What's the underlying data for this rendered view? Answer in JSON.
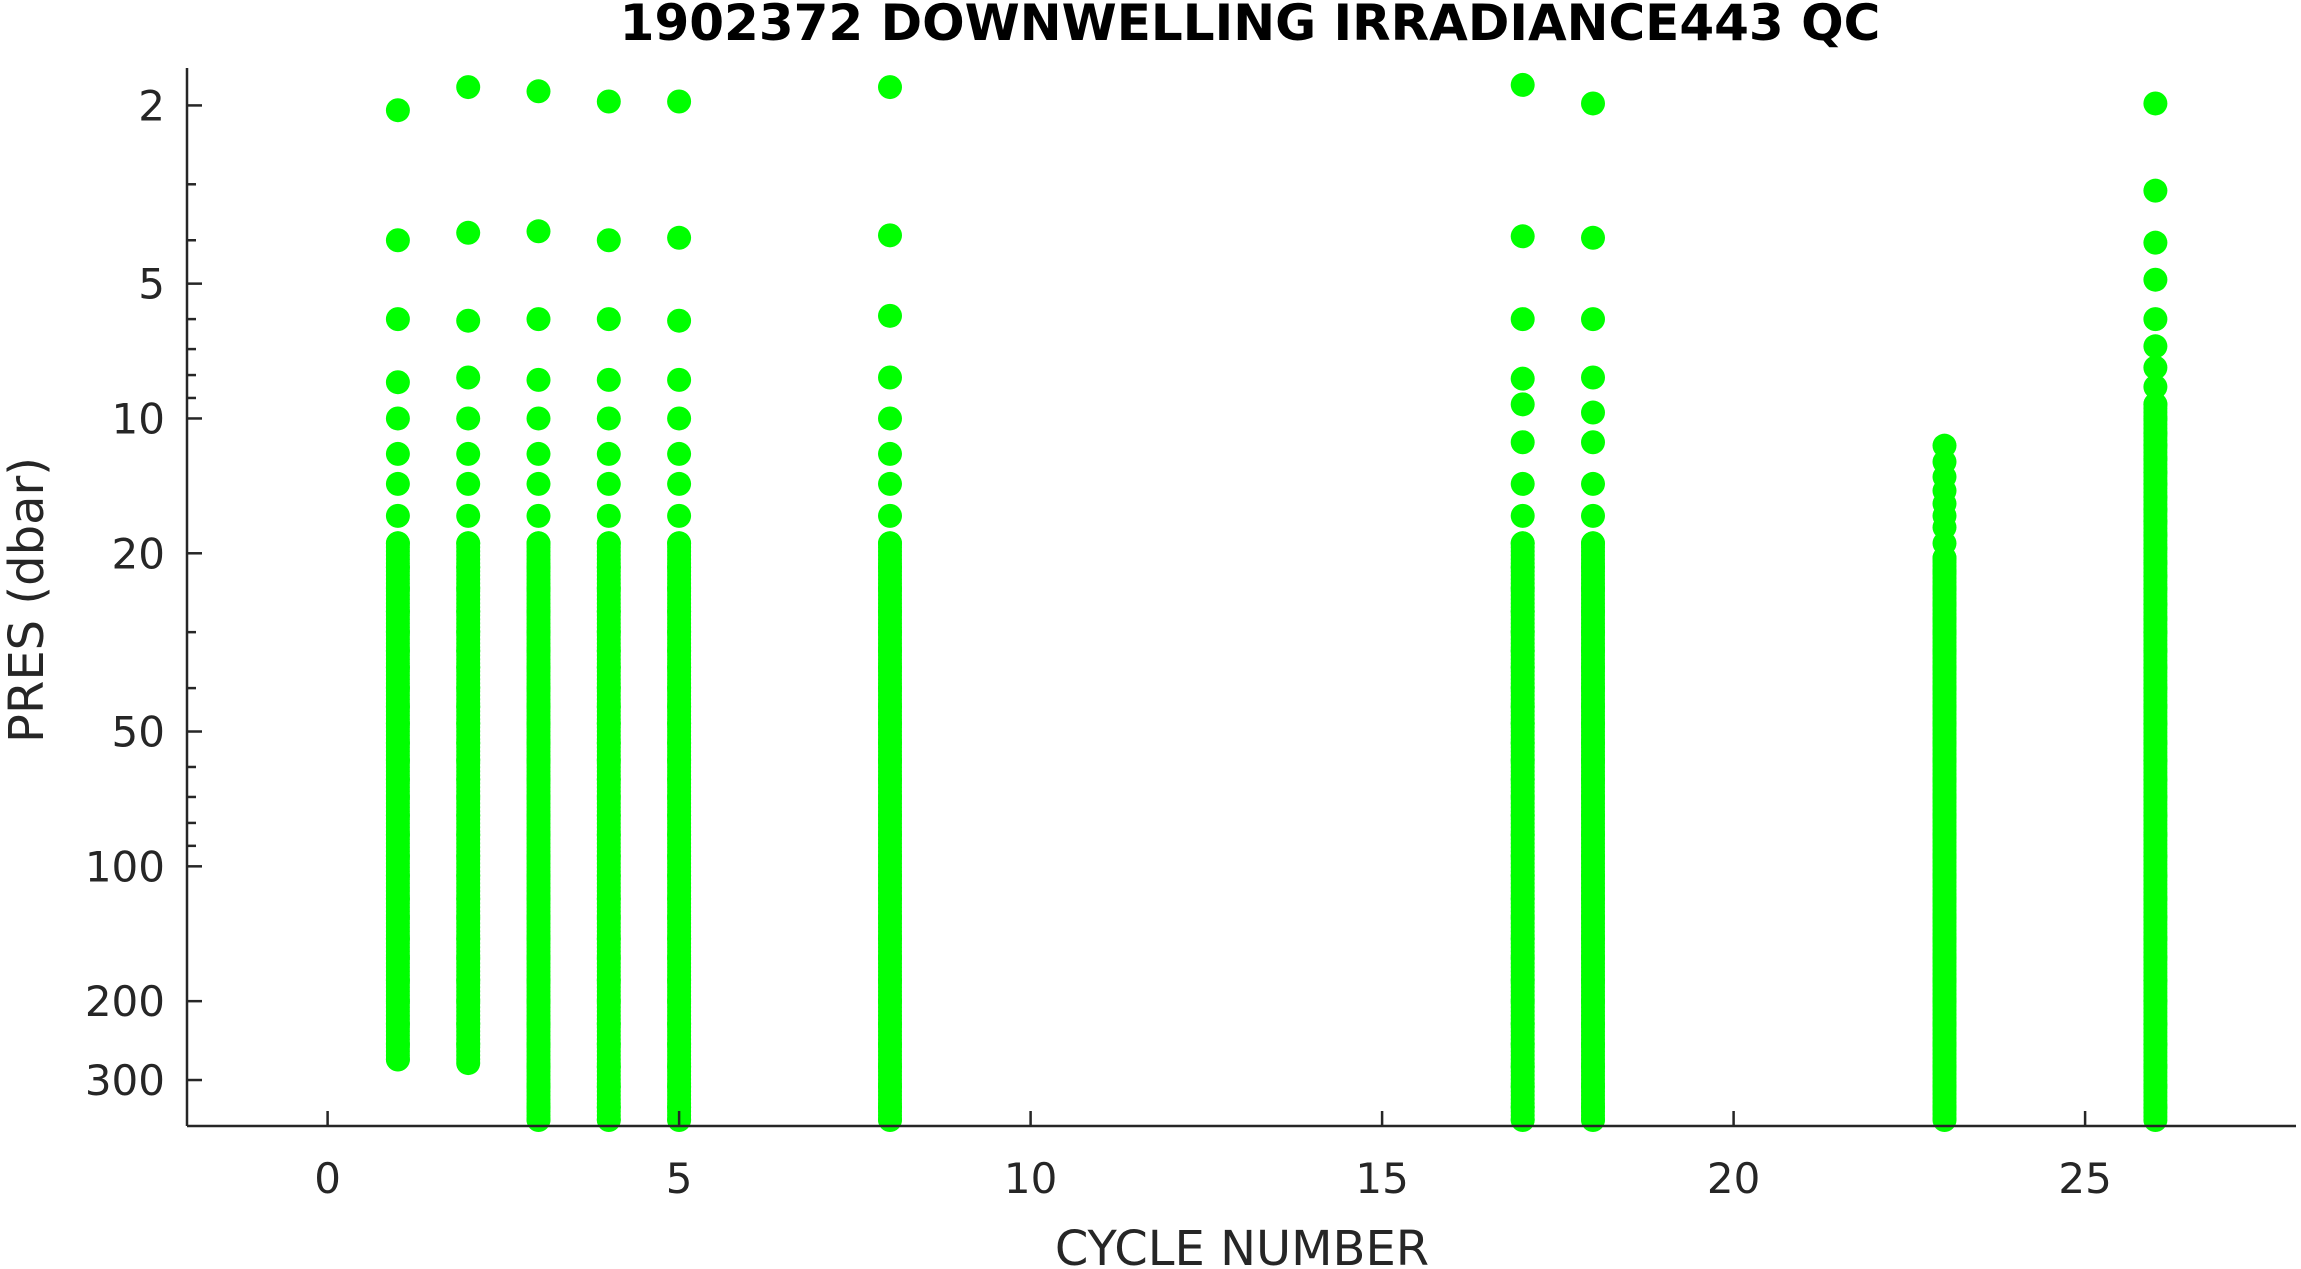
{
  "chart_data": {
    "type": "scatter",
    "title": "1902372  DOWNWELLING IRRADIANCE443 QC",
    "xlabel": "CYCLE NUMBER",
    "ylabel": "PRES (dbar)",
    "xlim": [
      -2,
      28
    ],
    "ylim": [
      1.65,
      380
    ],
    "yscale": "log",
    "y_reversed": true,
    "grid": false,
    "x_ticks": [
      0,
      5,
      10,
      15,
      20,
      25
    ],
    "y_ticks": [
      2,
      5,
      10,
      20,
      50,
      100,
      200,
      300
    ],
    "marker_color": "#00ff00",
    "axis_color": "#262626",
    "profiles": [
      {
        "cycle": 1,
        "pres_min": 2.05,
        "pres_max": 270,
        "upper_levels": [
          2.05,
          4.0,
          6.0,
          8.3,
          10,
          12,
          14,
          16.5,
          19,
          21.5,
          24,
          27,
          30,
          33,
          36,
          40,
          44,
          48,
          53,
          58,
          64,
          70,
          77,
          85,
          95,
          105,
          118,
          130,
          145,
          160,
          180,
          200,
          225,
          250,
          270
        ]
      },
      {
        "cycle": 2,
        "pres_min": 1.82,
        "pres_max": 275,
        "upper_levels": [
          1.82,
          3.85,
          6.05,
          8.1,
          10,
          12,
          14,
          16.5,
          19,
          21.5,
          24,
          27,
          30,
          33,
          36,
          40,
          44,
          48,
          53,
          58,
          64,
          70,
          77,
          85,
          95,
          105,
          118,
          130,
          145,
          160,
          180,
          200,
          225,
          250,
          275
        ]
      },
      {
        "cycle": 3,
        "pres_min": 1.86,
        "pres_max": 380,
        "upper_levels": [
          1.86,
          3.82,
          6.0,
          8.2,
          10,
          12,
          14,
          16.5,
          19,
          21.5,
          24,
          27,
          30,
          33,
          36,
          40,
          44,
          48,
          53,
          58,
          64,
          70,
          77,
          85,
          95,
          105,
          118,
          130,
          145,
          160,
          180,
          200,
          225,
          250,
          280,
          310,
          345,
          380
        ]
      },
      {
        "cycle": 4,
        "pres_min": 1.96,
        "pres_max": 380,
        "upper_levels": [
          1.96,
          4.0,
          6.0,
          8.2,
          10,
          12,
          14,
          16.5,
          19,
          21.5,
          24,
          27,
          30,
          33,
          36,
          40,
          44,
          48,
          53,
          58,
          64,
          70,
          77,
          85,
          95,
          105,
          118,
          130,
          145,
          160,
          180,
          200,
          225,
          250,
          280,
          310,
          345,
          380
        ]
      },
      {
        "cycle": 5,
        "pres_min": 1.96,
        "pres_max": 380,
        "upper_levels": [
          1.96,
          3.95,
          6.05,
          8.2,
          10,
          12,
          14,
          16.5,
          19,
          21.5,
          24,
          27,
          30,
          33,
          36,
          40,
          44,
          48,
          53,
          58,
          64,
          70,
          77,
          85,
          95,
          105,
          118,
          130,
          145,
          160,
          180,
          200,
          225,
          250,
          280,
          310,
          345,
          380
        ]
      },
      {
        "cycle": 8,
        "pres_min": 1.82,
        "pres_max": 380,
        "upper_levels": [
          1.82,
          3.9,
          5.9,
          8.1,
          10,
          12,
          14,
          16.5,
          19,
          21.5,
          24,
          27,
          30,
          33,
          36,
          40,
          44,
          48,
          53,
          58,
          64,
          70,
          77,
          85,
          95,
          105,
          118,
          130,
          145,
          160,
          180,
          200,
          225,
          250,
          280,
          310,
          345,
          380
        ]
      },
      {
        "cycle": 17,
        "pres_min": 1.8,
        "pres_max": 380,
        "upper_levels": [
          1.8,
          3.92,
          6.0,
          8.15,
          9.3,
          11.3,
          14,
          16.5,
          19,
          21.5,
          24,
          27,
          30,
          33,
          36,
          40,
          44,
          48,
          53,
          58,
          64,
          70,
          77,
          85,
          95,
          105,
          118,
          130,
          145,
          160,
          180,
          200,
          225,
          250,
          280,
          310,
          345,
          380
        ]
      },
      {
        "cycle": 18,
        "pres_min": 1.98,
        "pres_max": 380,
        "upper_levels": [
          1.98,
          3.95,
          6.0,
          8.1,
          9.7,
          11.3,
          14,
          16.5,
          19,
          21.5,
          24,
          27,
          30,
          33,
          36,
          40,
          44,
          48,
          53,
          58,
          64,
          70,
          77,
          85,
          95,
          105,
          118,
          130,
          145,
          160,
          180,
          200,
          225,
          250,
          280,
          310,
          345,
          380
        ]
      },
      {
        "cycle": 23,
        "pres_min": 11.5,
        "pres_max": 380,
        "upper_levels": [
          11.5,
          12.5,
          13.5,
          14.5,
          15.5,
          16.5,
          17.5,
          19,
          20.5,
          22,
          24,
          26,
          28,
          30,
          33,
          36,
          40,
          44,
          48,
          53,
          58,
          64,
          70,
          77,
          85,
          95,
          105,
          118,
          130,
          145,
          160,
          180,
          200,
          225,
          250,
          280,
          310,
          345,
          380
        ]
      },
      {
        "cycle": 26,
        "pres_min": 1.98,
        "pres_max": 380,
        "upper_levels": [
          1.98,
          3.1,
          4.05,
          4.9,
          6.0,
          6.9,
          7.7,
          8.5,
          9.3,
          10,
          10.8,
          11.5,
          12.3,
          13.2,
          14,
          15,
          16,
          17,
          18.2,
          19.5,
          21,
          22.5,
          24,
          26,
          28,
          30,
          33,
          36,
          40,
          44,
          48,
          53,
          58,
          64,
          70,
          77,
          85,
          95,
          105,
          118,
          130,
          145,
          160,
          180,
          200,
          225,
          250,
          280,
          310,
          345,
          380
        ]
      }
    ]
  }
}
